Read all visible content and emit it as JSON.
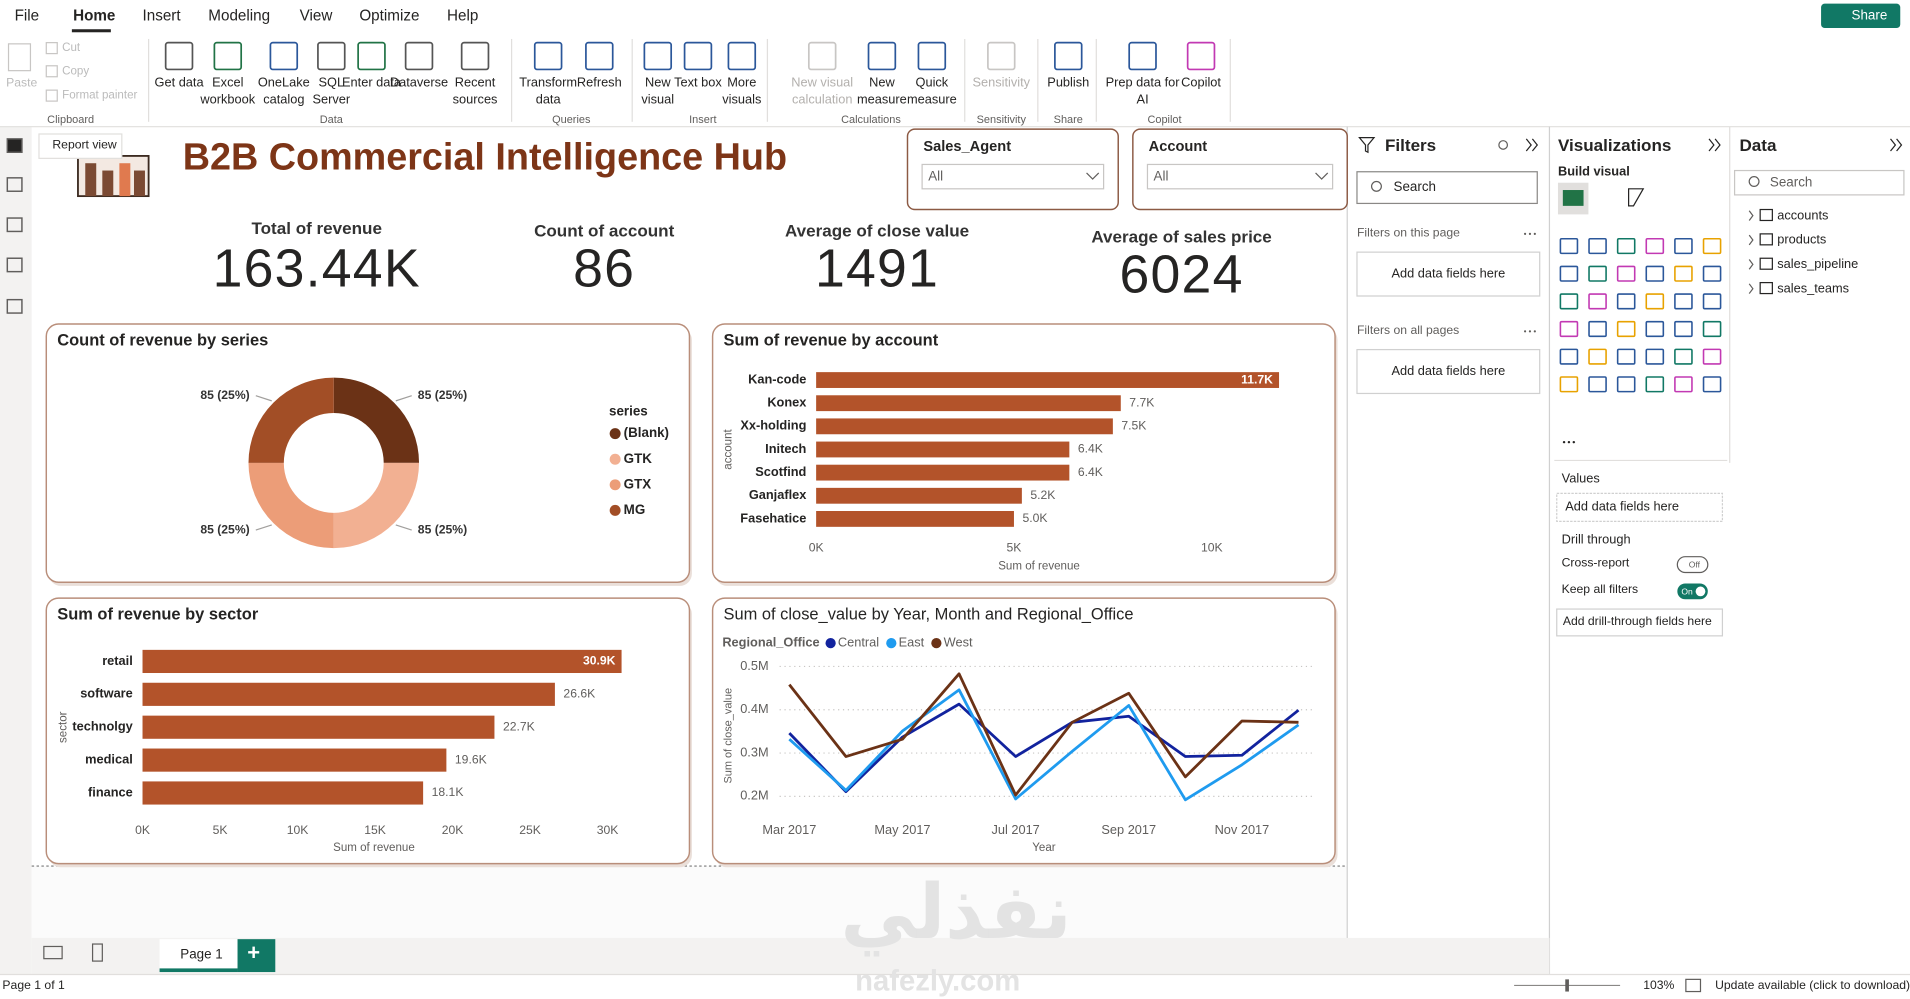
{
  "menu": {
    "tabs": [
      "File",
      "Home",
      "Insert",
      "Modeling",
      "View",
      "Optimize",
      "Help"
    ],
    "share": "Share"
  },
  "ribbon": {
    "groups": [
      {
        "label": "Clipboard",
        "buttons": [
          "Paste",
          "Cut",
          "Copy",
          "Format painter"
        ]
      },
      {
        "label": "Data",
        "buttons": [
          "Get data",
          "Excel workbook",
          "OneLake catalog",
          "SQL Server",
          "Enter data",
          "Dataverse",
          "Recent sources"
        ]
      },
      {
        "label": "Queries",
        "buttons": [
          "Transform data",
          "Refresh"
        ]
      },
      {
        "label": "Insert",
        "buttons": [
          "New visual",
          "Text box",
          "More visuals"
        ]
      },
      {
        "label": "Calculations",
        "buttons": [
          "New visual calculation",
          "New measure",
          "Quick measure"
        ]
      },
      {
        "label": "Sensitivity",
        "buttons": [
          "Sensitivity"
        ]
      },
      {
        "label": "Share",
        "buttons": [
          "Publish"
        ]
      },
      {
        "label": "Copilot",
        "buttons": [
          "Prep data for AI",
          "Copilot"
        ]
      }
    ]
  },
  "left_nav": {
    "tooltip": "Report view"
  },
  "report": {
    "title": "B2B Commercial Intelligence Hub",
    "slicers": [
      {
        "label": "Sales_Agent",
        "value": "All"
      },
      {
        "label": "Account",
        "value": "All"
      }
    ],
    "kpis": [
      {
        "label": "Total of revenue",
        "value": "163.44K"
      },
      {
        "label": "Count of account",
        "value": "86"
      },
      {
        "label": "Average of close value",
        "value": "1491"
      },
      {
        "label": "Average of sales price",
        "value": "6024"
      }
    ]
  },
  "chart_data": [
    {
      "type": "pie",
      "donut": true,
      "title": "Count of revenue by series",
      "legend_title": "series",
      "categories": [
        "(Blank)",
        "GTK",
        "GTX",
        "MG"
      ],
      "values": [
        85,
        85,
        85,
        85
      ],
      "value_labels": [
        "85 (25%)",
        "85 (25%)",
        "85 (25%)",
        "85 (25%)"
      ],
      "colors": [
        "#6b3216",
        "#f2b092",
        "#ec9d78",
        "#a24e26"
      ]
    },
    {
      "type": "bar",
      "orientation": "horizontal",
      "title": "Sum of revenue by account",
      "categories": [
        "Kan-code",
        "Konex",
        "Xx-holding",
        "Initech",
        "Scotfind",
        "Ganjaflex",
        "Fasehatice"
      ],
      "values": [
        11700,
        7700,
        7500,
        6400,
        6400,
        5200,
        5000
      ],
      "value_labels": [
        "11.7K",
        "7.7K",
        "7.5K",
        "6.4K",
        "6.4K",
        "5.2K",
        "5.0K"
      ],
      "color": "#b3532a",
      "xlim": [
        0,
        12500
      ],
      "xticks": [
        {
          "value": 0,
          "label": "0K"
        },
        {
          "value": 5000,
          "label": "5K"
        },
        {
          "value": 10000,
          "label": "10K"
        }
      ],
      "x_label": "Sum of revenue",
      "y_label": "account",
      "grid": false
    },
    {
      "type": "bar",
      "orientation": "horizontal",
      "title": "Sum of revenue by sector",
      "categories": [
        "retail",
        "software",
        "technolgy",
        "medical",
        "finance"
      ],
      "values": [
        30900,
        26600,
        22700,
        19600,
        18100
      ],
      "value_labels": [
        "30.9K",
        "26.6K",
        "22.7K",
        "19.6K",
        "18.1K"
      ],
      "color": "#b3532a",
      "xlim": [
        0,
        33000
      ],
      "xticks": [
        {
          "value": 0,
          "label": "0K"
        },
        {
          "value": 5000,
          "label": "5K"
        },
        {
          "value": 10000,
          "label": "10K"
        },
        {
          "value": 15000,
          "label": "15K"
        },
        {
          "value": 20000,
          "label": "20K"
        },
        {
          "value": 25000,
          "label": "25K"
        },
        {
          "value": 30000,
          "label": "30K"
        }
      ],
      "x_label": "Sum of revenue",
      "y_label": "sector",
      "grid": false
    },
    {
      "type": "line",
      "title": "Sum of close_value by Year, Month and Regional_Office",
      "legend_title": "Regional_Office",
      "categories": [
        "Mar 2017",
        null,
        "May 2017",
        null,
        "Jul 2017",
        null,
        "Sep 2017",
        null,
        "Nov 2017",
        null
      ],
      "series": [
        {
          "name": "Central",
          "color": "#12239e",
          "values": [
            346000,
            211000,
            337000,
            413000,
            292000,
            371000,
            385000,
            292000,
            295000,
            399000
          ]
        },
        {
          "name": "East",
          "color": "#1f9bef",
          "values": [
            332000,
            214000,
            351000,
            446000,
            194000,
            304000,
            410000,
            192000,
            273000,
            365000
          ]
        },
        {
          "name": "West",
          "color": "#6b3216",
          "values": [
            458000,
            292000,
            332000,
            483000,
            203000,
            371000,
            438000,
            245000,
            374000,
            371000
          ]
        }
      ],
      "ylim": [
        160000,
        520000
      ],
      "yticks": [
        {
          "value": 200000,
          "label": "0.2M"
        },
        {
          "value": 300000,
          "label": "0.3M"
        },
        {
          "value": 400000,
          "label": "0.4M"
        },
        {
          "value": 500000,
          "label": "0.5M"
        }
      ],
      "x_label": "Year",
      "y_label": "Sum of close_value",
      "grid": true
    }
  ],
  "filters_pane": {
    "title": "Filters",
    "search": "Search",
    "sections": [
      {
        "label": "Filters on this page",
        "placeholder": "Add data fields here"
      },
      {
        "label": "Filters on all pages",
        "placeholder": "Add data fields here"
      }
    ]
  },
  "visualizations_pane": {
    "title": "Visualizations",
    "build_visual": "Build visual",
    "values_label": "Values",
    "values_placeholder": "Add data fields here",
    "drill_through": "Drill through",
    "cross_report": "Cross-report",
    "cross_report_state": "Off",
    "keep_all_filters": "Keep all filters",
    "keep_all_filters_state": "On",
    "drill_placeholder": "Add drill-through fields here"
  },
  "data_pane": {
    "title": "Data",
    "search": "Search",
    "tables": [
      "accounts",
      "products",
      "sales_pipeline",
      "sales_teams"
    ]
  },
  "page_tabs": {
    "tabs": [
      "Page 1"
    ],
    "add": "+"
  },
  "status_bar": {
    "page": "Page 1 of 1",
    "zoom": "103%",
    "update": "Update available (click to download)"
  },
  "watermark": {
    "arabic": "نفذلي",
    "site": "nafezly.com"
  }
}
